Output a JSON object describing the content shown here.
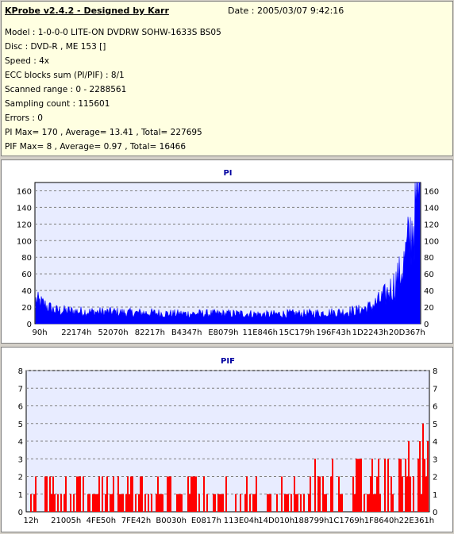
{
  "header": {
    "title": "KProbe v2.4.2 - Designed by Karr",
    "date": "Date : 2005/03/07 9:42:16"
  },
  "info_lines": [
    "Model : 1-0-0-0 LITE-ON DVDRW SOHW-1633S BS05",
    "Disc : DVD-R , ME 153 []",
    "Speed : 4x",
    "ECC blocks sum (PI/PIF) : 8/1",
    "Scanned range : 0 - 2288561",
    "Sampling count : 115601",
    "Errors : 0",
    "PI Max= 170 , Average= 13.41 , Total= 227695",
    "PIF Max= 8 , Average= 0.97 , Total= 16466"
  ],
  "colors": {
    "pi": "#0000ff",
    "pif": "#ff0000",
    "plot_bg": "#e8ecff",
    "title": "#0000a0"
  },
  "chart_data": [
    {
      "type": "area",
      "title": "PI",
      "ylim": [
        0,
        170
      ],
      "yticks": [
        0,
        20,
        40,
        60,
        80,
        100,
        120,
        140,
        160
      ],
      "xtick_labels": [
        "90h",
        "22174h",
        "52070h",
        "82217h",
        "B4347h",
        "E8079h",
        "11E846h",
        "15C179h",
        "196F43h",
        "1D2243h",
        "20D367h"
      ],
      "grid": true,
      "x": [
        0,
        0.05,
        0.1,
        0.15,
        0.2,
        0.25,
        0.3,
        0.35,
        0.4,
        0.45,
        0.5,
        0.55,
        0.6,
        0.65,
        0.7,
        0.75,
        0.8,
        0.84,
        0.87,
        0.89,
        0.91,
        0.93,
        0.95,
        0.96,
        0.97,
        0.98,
        0.99,
        1.0
      ],
      "values": [
        28,
        16,
        15,
        14,
        14,
        13,
        13,
        12,
        12,
        12,
        12,
        12,
        11,
        12,
        12,
        13,
        14,
        16,
        20,
        26,
        34,
        45,
        60,
        75,
        95,
        115,
        140,
        165
      ]
    },
    {
      "type": "bar",
      "title": "PIF",
      "ylim": [
        0,
        8
      ],
      "yticks": [
        0,
        1,
        2,
        3,
        4,
        5,
        6,
        7,
        8
      ],
      "xtick_labels": [
        "12h",
        "21005h",
        "4FE50h",
        "7FE42h",
        "B0030h",
        "E0817h",
        "113E04h",
        "14D010h",
        "188799h",
        "1C1769h",
        "1F8640h",
        "22E361h"
      ],
      "grid": true,
      "x": [
        0,
        0.1,
        0.2,
        0.3,
        0.4,
        0.5,
        0.6,
        0.68,
        0.72,
        0.76,
        0.8,
        0.85,
        0.9,
        0.93,
        0.96,
        1.0
      ],
      "values": [
        2,
        1.5,
        1.5,
        1.5,
        1.5,
        1.5,
        1.2,
        1.2,
        2,
        2.2,
        2.4,
        2.5,
        2.6,
        3,
        3.5,
        4
      ],
      "max": 8
    }
  ]
}
